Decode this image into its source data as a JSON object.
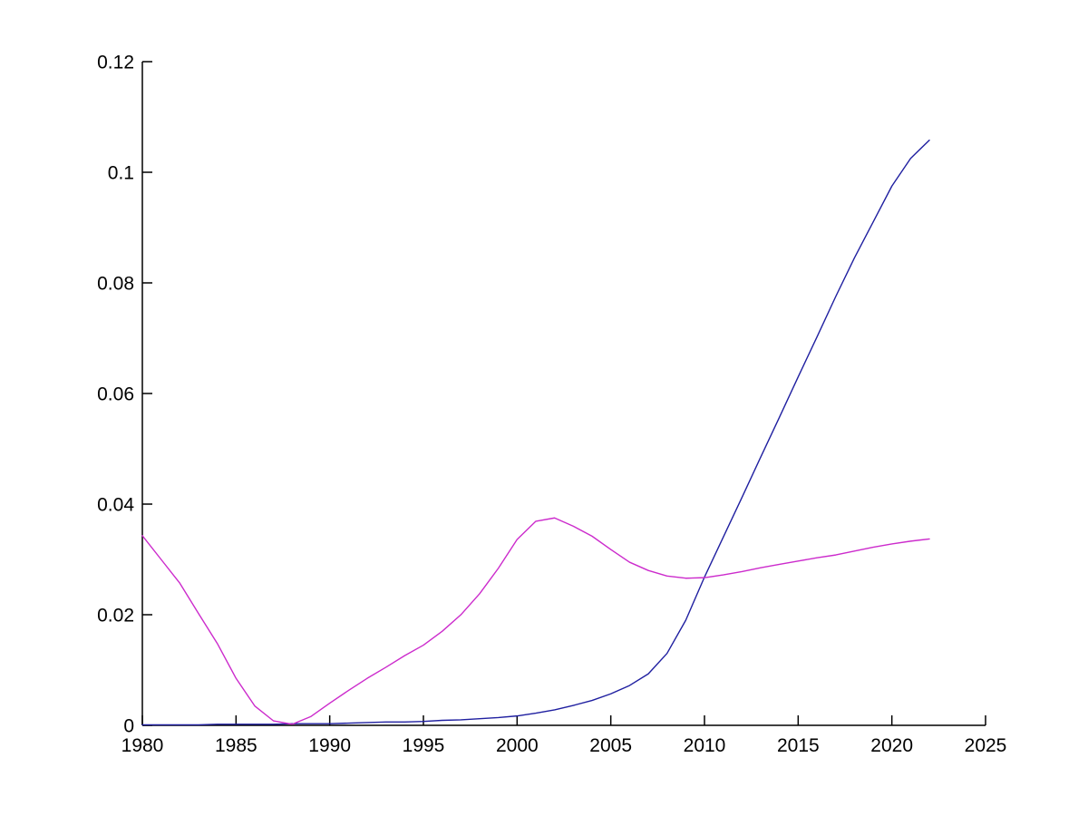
{
  "figure": {
    "background": "#ffffff",
    "title": ""
  },
  "chart_data": {
    "type": "line",
    "title": "",
    "xlabel": "",
    "ylabel": "",
    "grid": false,
    "legend": "none",
    "box": "off",
    "tick_direction": "in",
    "axis_color": "#000000",
    "xlim": [
      1980,
      2025
    ],
    "ylim": [
      0,
      0.12
    ],
    "x_ticks": [
      1980,
      1985,
      1990,
      1995,
      2000,
      2005,
      2010,
      2015,
      2020,
      2025
    ],
    "x_tick_labels": [
      "1980",
      "1985",
      "1990",
      "1995",
      "2000",
      "2005",
      "2010",
      "2015",
      "2020",
      "2025"
    ],
    "y_ticks": [
      0,
      0.02,
      0.04,
      0.06,
      0.08,
      0.1,
      0.12
    ],
    "y_tick_labels": [
      "0",
      "0.02",
      "0.04",
      "0.06",
      "0.08",
      "0.1",
      "0.12"
    ],
    "x": [
      1980,
      1981,
      1982,
      1983,
      1984,
      1985,
      1986,
      1987,
      1988,
      1989,
      1990,
      1991,
      1992,
      1993,
      1994,
      1995,
      1996,
      1997,
      1998,
      1999,
      2000,
      2001,
      2002,
      2003,
      2004,
      2005,
      2006,
      2007,
      2008,
      2009,
      2010,
      2011,
      2012,
      2013,
      2014,
      2015,
      2016,
      2017,
      2018,
      2019,
      2020,
      2021,
      2022
    ],
    "series": [
      {
        "name": "series_blue",
        "color": "#1f1fa0",
        "values": [
          0.0001,
          0.0001,
          0.0001,
          0.0001,
          0.0002,
          0.0002,
          0.0002,
          0.0002,
          0.0003,
          0.0003,
          0.0003,
          0.0004,
          0.0005,
          0.0006,
          0.0006,
          0.0007,
          0.0009,
          0.001,
          0.0012,
          0.0014,
          0.0017,
          0.0022,
          0.0028,
          0.0036,
          0.0045,
          0.0057,
          0.0072,
          0.0093,
          0.013,
          0.019,
          0.0268,
          0.034,
          0.0412,
          0.0485,
          0.0557,
          0.063,
          0.0702,
          0.0775,
          0.0845,
          0.091,
          0.0975,
          0.1025,
          0.1058
        ]
      },
      {
        "name": "series_magenta",
        "color": "#cc2bcc",
        "values": [
          0.0343,
          0.03,
          0.0257,
          0.0202,
          0.0148,
          0.0085,
          0.0035,
          0.0008,
          0.0002,
          0.0016,
          0.004,
          0.0063,
          0.0085,
          0.0105,
          0.0126,
          0.0145,
          0.017,
          0.02,
          0.0238,
          0.0284,
          0.0336,
          0.0369,
          0.0375,
          0.036,
          0.0342,
          0.0318,
          0.0295,
          0.028,
          0.027,
          0.0266,
          0.0267,
          0.0272,
          0.0278,
          0.0285,
          0.0291,
          0.0297,
          0.0303,
          0.0308,
          0.0315,
          0.0322,
          0.0328,
          0.0333,
          0.0337
        ]
      }
    ]
  }
}
